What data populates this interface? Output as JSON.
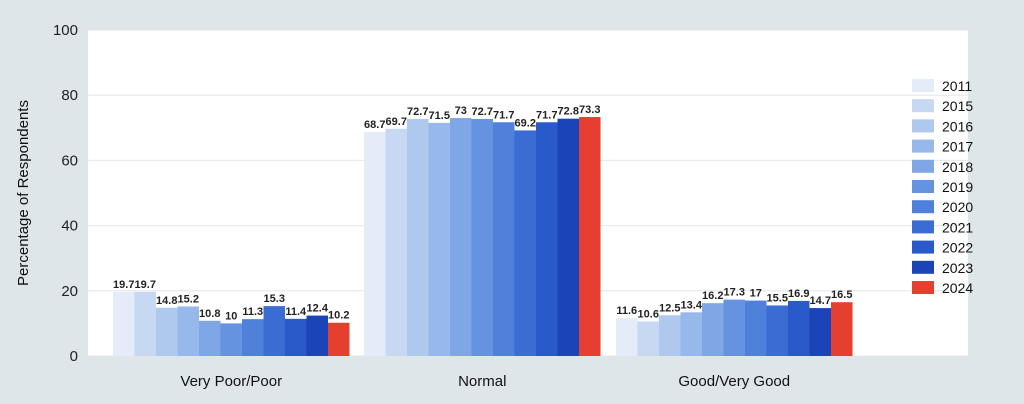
{
  "chart_data": {
    "type": "bar",
    "title": "",
    "xlabel": "",
    "ylabel": "Percentage of Respondents",
    "ylim": [
      0,
      100
    ],
    "yticks": [
      0,
      20,
      40,
      60,
      80,
      100
    ],
    "grid": true,
    "legend_position": "right",
    "categories": [
      "Very Poor/Poor",
      "Normal",
      "Good/Very Good"
    ],
    "series": [
      {
        "name": "2011",
        "color": "#e3ecf8",
        "values": [
          19.7,
          68.7,
          11.6
        ]
      },
      {
        "name": "2015",
        "color": "#c6d8f2",
        "values": [
          19.7,
          69.7,
          10.6
        ]
      },
      {
        "name": "2016",
        "color": "#afc8ee",
        "values": [
          14.8,
          72.7,
          12.5
        ]
      },
      {
        "name": "2017",
        "color": "#97b8ea",
        "values": [
          15.2,
          71.5,
          13.4
        ]
      },
      {
        "name": "2018",
        "color": "#7fa6e5",
        "values": [
          10.8,
          73,
          16.2
        ]
      },
      {
        "name": "2019",
        "color": "#6693e0",
        "values": [
          10,
          72.7,
          17.3
        ]
      },
      {
        "name": "2020",
        "color": "#4f80da",
        "values": [
          11.3,
          71.7,
          17
        ]
      },
      {
        "name": "2021",
        "color": "#3a6cd3",
        "values": [
          15.3,
          69.2,
          15.5
        ]
      },
      {
        "name": "2022",
        "color": "#2a59c9",
        "values": [
          11.4,
          71.7,
          16.9
        ]
      },
      {
        "name": "2023",
        "color": "#1a44b8",
        "values": [
          12.4,
          72.8,
          14.7
        ]
      },
      {
        "name": "2024",
        "color": "#e5402f",
        "values": [
          10.2,
          73.3,
          16.5
        ]
      }
    ]
  }
}
